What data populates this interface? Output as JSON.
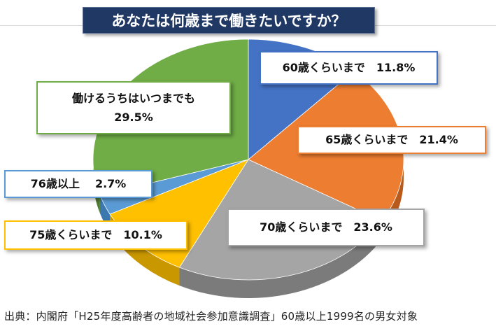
{
  "chart_data": {
    "type": "pie",
    "title": "あなたは何歳まで働きたいですか？",
    "slices": [
      {
        "label": "60歳くらいまで",
        "value": 11.8,
        "color": "#4472c4",
        "side": "#2f5597"
      },
      {
        "label": "65歳くらいまで",
        "value": 21.4,
        "color": "#ed7d31",
        "side": "#b85a1c"
      },
      {
        "label": "70歳くらいまで",
        "value": 23.6,
        "color": "#a5a5a5",
        "side": "#7b7b7b"
      },
      {
        "label": "75歳くらいまで",
        "value": 10.1,
        "color": "#ffc000",
        "side": "#c99700"
      },
      {
        "label": "76歳以上",
        "value": 2.7,
        "color": "#5b9bd5",
        "side": "#3b78b0"
      },
      {
        "label": "働けるうちはいつまでも",
        "value": 29.5,
        "color": "#70ad47",
        "side": "#4e7d31"
      }
    ],
    "labels": {
      "s60": {
        "name": "60歳くらいまで",
        "pct": "11.8%"
      },
      "s65": {
        "name": "65歳くらいまで",
        "pct": "21.4%"
      },
      "s70": {
        "name": "70歳くらいまで",
        "pct": "23.6%"
      },
      "s75": {
        "name": "75歳くらいまで",
        "pct": "10.1%"
      },
      "s76": {
        "name": "76歳以上",
        "pct": "2.7%"
      },
      "sany": {
        "name": "働けるうちはいつまでも",
        "pct": "29.5%"
      }
    },
    "source": "出典：内閣府「H25年度高齢者の地域社会参加意識調査」60歳以上1999名の男女対象"
  }
}
